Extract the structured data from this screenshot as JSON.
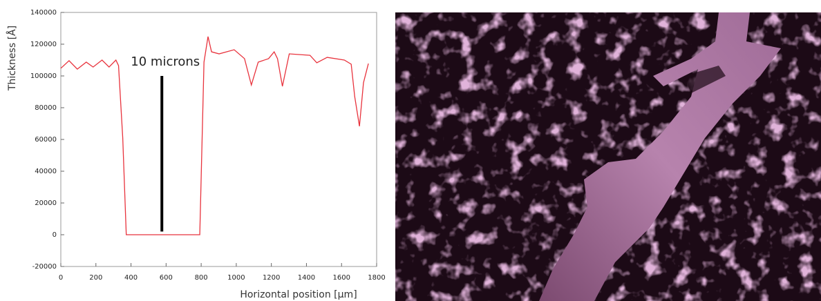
{
  "chart_data": {
    "type": "line",
    "xlabel": "Horizontal position [μm]",
    "ylabel": "Thickness [Å]",
    "annotation": "10 microns",
    "scale_bar": {
      "x": 576,
      "y": [
        2000,
        100000
      ]
    },
    "xlim": [
      0,
      1800
    ],
    "xticks": [
      0,
      200,
      400,
      600,
      800,
      1000,
      1200,
      1400,
      1600,
      1800
    ],
    "ylim": [
      -20000,
      140000
    ],
    "yticks": [
      -20000,
      0,
      20000,
      40000,
      60000,
      80000,
      100000,
      120000,
      140000
    ],
    "series": [
      {
        "color": "#e8323c",
        "x": [
          0,
          47,
          94,
          145,
          184,
          235,
          275,
          314,
          329,
          353,
          373,
          792,
          816,
          839,
          859,
          902,
          988,
          1047,
          1086,
          1125,
          1184,
          1216,
          1235,
          1263,
          1302,
          1420,
          1459,
          1518,
          1616,
          1655,
          1675,
          1702,
          1725,
          1753
        ],
        "values": [
          104800,
          109600,
          104300,
          108700,
          105600,
          110000,
          105600,
          110000,
          106500,
          60900,
          0,
          0,
          108700,
          124800,
          115200,
          113900,
          116500,
          110900,
          94300,
          108700,
          110900,
          115200,
          110900,
          93500,
          113900,
          113000,
          108300,
          111700,
          110000,
          107400,
          87000,
          68300,
          95700,
          107800
        ]
      }
    ]
  }
}
